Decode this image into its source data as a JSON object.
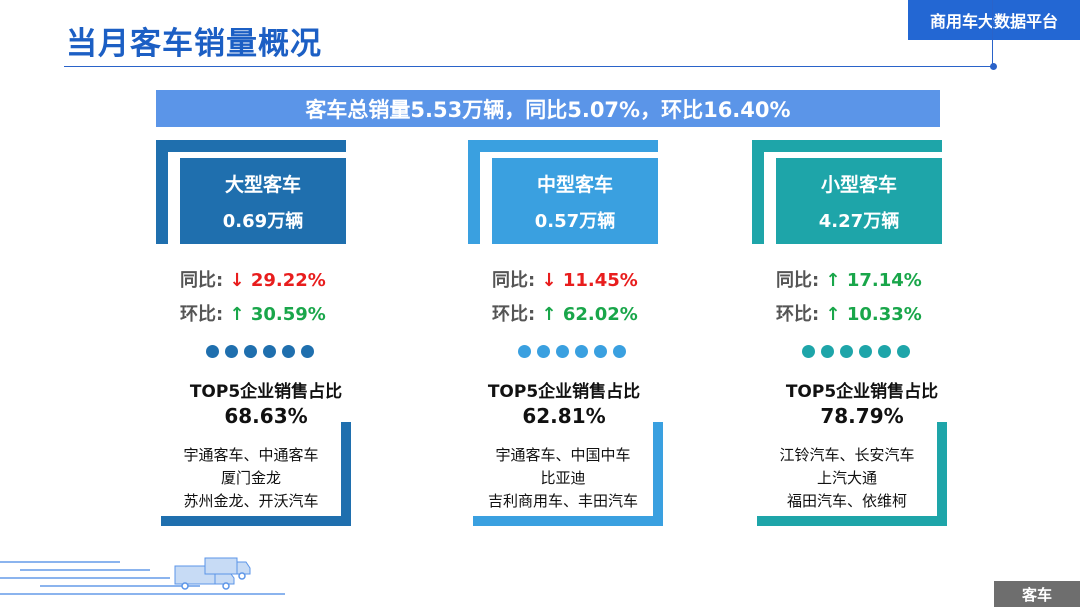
{
  "header": {
    "title": "当月客车销量概况",
    "brand": "商用车大数据平台"
  },
  "summary": "客车总销量5.53万辆，同比5.07%，环比16.40%",
  "labels": {
    "yoy": "同比:",
    "mom": "环比:",
    "top5": "TOP5企业销售占比"
  },
  "columns": [
    {
      "name": "大型客车",
      "volume": "0.69万辆",
      "yoy_arrow": "↓",
      "yoy": "29.22%",
      "mom_arrow": "↑",
      "mom": "30.59%",
      "top5_share": "68.63%",
      "companies": [
        "宇通客车、中通客车",
        "厦门金龙",
        "苏州金龙、开沃汽车"
      ],
      "color": "#1f6fae"
    },
    {
      "name": "中型客车",
      "volume": "0.57万辆",
      "yoy_arrow": "↓",
      "yoy": "11.45%",
      "mom_arrow": "↑",
      "mom": "62.02%",
      "top5_share": "62.81%",
      "companies": [
        "宇通客车、中国中车",
        "比亚迪",
        "吉利商用车、丰田汽车"
      ],
      "color": "#3aa0e0"
    },
    {
      "name": "小型客车",
      "volume": "4.27万辆",
      "yoy_arrow": "↑",
      "yoy": "17.14%",
      "mom_arrow": "↑",
      "mom": "10.33%",
      "top5_share": "78.79%",
      "companies": [
        "江铃汽车、长安汽车",
        "上汽大通",
        "福田汽车、依维柯"
      ],
      "color": "#1ea5a9"
    }
  ],
  "footer": "客车",
  "colors": {
    "title": "#1c5fc4",
    "brand_bg": "#2367d3",
    "summary_bg": "#5b95e8",
    "down": "#e81d1d",
    "up": "#19a64a"
  }
}
